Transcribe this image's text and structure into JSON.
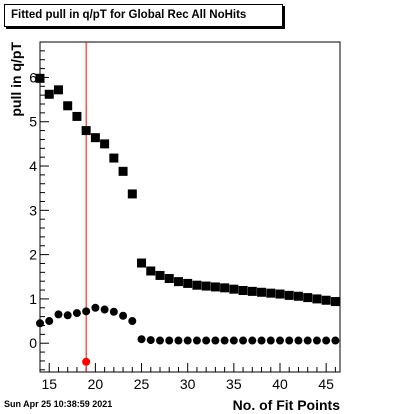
{
  "timestamp": "Sun Apr 25 10:38:59 2021",
  "chart_data": {
    "type": "scatter",
    "title": "Fitted pull in q/pT for Global Rec All NoHits",
    "xlabel": "No. of Fit Points",
    "ylabel": "pull in q/pT",
    "xlim": [
      14,
      46.5
    ],
    "ylim": [
      -0.65,
      6.8
    ],
    "xticks": [
      15,
      20,
      25,
      30,
      35,
      40,
      45
    ],
    "yticks": [
      0,
      1,
      2,
      3,
      4,
      5,
      6
    ],
    "grid": false,
    "marker_line_x": 19,
    "series": [
      {
        "marker": "square",
        "color": "#000000",
        "x": [
          14,
          15,
          16,
          17,
          18,
          19,
          20,
          21,
          22,
          23,
          24,
          25,
          26,
          27,
          28,
          29,
          30,
          31,
          32,
          33,
          34,
          35,
          36,
          37,
          38,
          39,
          40,
          41,
          42,
          43,
          44,
          45,
          46
        ],
        "y": [
          5.98,
          5.62,
          5.72,
          5.36,
          5.12,
          4.8,
          4.64,
          4.5,
          4.18,
          3.88,
          3.37,
          1.81,
          1.63,
          1.53,
          1.46,
          1.39,
          1.35,
          1.31,
          1.29,
          1.27,
          1.25,
          1.22,
          1.19,
          1.17,
          1.15,
          1.13,
          1.11,
          1.08,
          1.06,
          1.03,
          1.0,
          0.97,
          0.94
        ]
      },
      {
        "marker": "circle",
        "color": "#000000",
        "x": [
          14,
          15,
          16,
          17,
          18,
          19,
          20,
          21,
          22,
          23,
          24,
          25,
          26,
          27,
          28,
          29,
          30,
          31,
          32,
          33,
          34,
          35,
          36,
          37,
          38,
          39,
          40,
          41,
          42,
          43,
          44,
          45,
          46
        ],
        "y": [
          0.45,
          0.5,
          0.65,
          0.63,
          0.68,
          0.72,
          0.8,
          0.76,
          0.71,
          0.62,
          0.5,
          0.09,
          0.07,
          0.06,
          0.06,
          0.06,
          0.06,
          0.06,
          0.06,
          0.06,
          0.06,
          0.06,
          0.06,
          0.06,
          0.06,
          0.06,
          0.06,
          0.06,
          0.06,
          0.06,
          0.06,
          0.06,
          0.06
        ]
      },
      {
        "marker": "circle",
        "color": "#ff0000",
        "x": [
          19
        ],
        "y": [
          -0.42
        ]
      }
    ]
  }
}
